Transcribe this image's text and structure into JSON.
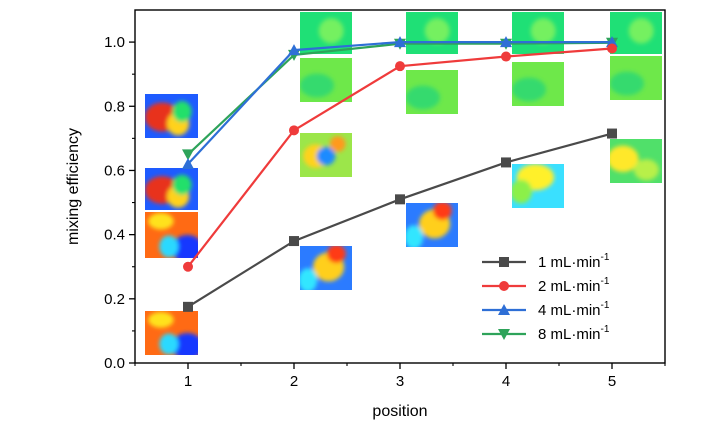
{
  "chart_data": {
    "type": "line",
    "title": "",
    "xlabel": "position",
    "ylabel": "mixing efficiency",
    "x": [
      1,
      2,
      3,
      4,
      5
    ],
    "xlim": [
      0.5,
      5.5
    ],
    "ylim": [
      0,
      1.1
    ],
    "xticks": [
      "1",
      "2",
      "3",
      "4",
      "5"
    ],
    "yticks": [
      "0.0",
      "0.2",
      "0.4",
      "0.6",
      "0.8",
      "1.0"
    ],
    "grid": false,
    "legend_position": "bottom-right",
    "series": [
      {
        "name": "1 mL·min",
        "sup": "-1",
        "color": "#4a4a4a",
        "marker": "square",
        "values": [
          0.175,
          0.38,
          0.51,
          0.625,
          0.715
        ]
      },
      {
        "name": "2 mL·min",
        "sup": "-1",
        "color": "#ef3b3b",
        "marker": "circle",
        "values": [
          0.3,
          0.725,
          0.925,
          0.955,
          0.98
        ]
      },
      {
        "name": "4 mL·min",
        "sup": "-1",
        "color": "#2e6fd6",
        "marker": "triangle-up",
        "values": [
          0.62,
          0.975,
          1.0,
          1.0,
          1.0
        ]
      },
      {
        "name": "8 mL·min",
        "sup": "-1",
        "color": "#2ea35a",
        "marker": "triangle-down",
        "values": [
          0.65,
          0.96,
          0.995,
          0.995,
          0.998
        ]
      }
    ],
    "annotations": "cross-section mixing contour maps shown beside each data point (blue = unmixed, red = unmixed, green = mixed)"
  }
}
